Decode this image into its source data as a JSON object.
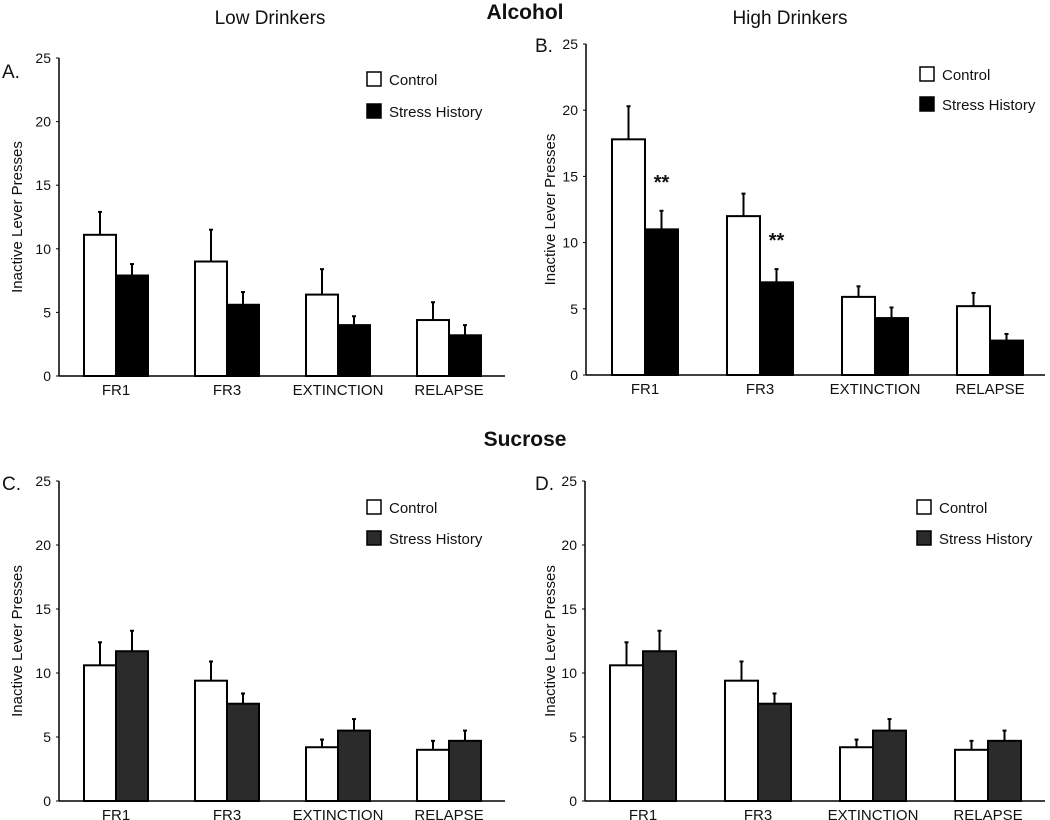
{
  "headers": {
    "low": "Low Drinkers",
    "alcohol": "Alcohol",
    "high": "High Drinkers",
    "sucrose": "Sucrose"
  },
  "colors": {
    "control": "#ffffff",
    "stress_alcohol": "#000000",
    "stress_sucrose": "#2b2b2b",
    "outline": "#000000"
  },
  "chart_data": [
    {
      "type": "bar",
      "panel": "A.",
      "title": "Low Drinkers",
      "group": "Alcohol",
      "ylabel": "Inactive Lever Presses",
      "ylim": [
        0,
        25
      ],
      "yticks": [
        "0",
        "5",
        "10",
        "15",
        "20",
        "25"
      ],
      "categories": [
        "FR1",
        "FR3",
        "EXTINCTION",
        "RELAPSE"
      ],
      "legend": [
        "Control",
        "Stress History"
      ],
      "legend_position": "top-right",
      "series": [
        {
          "name": "Control",
          "values": [
            11.1,
            9.0,
            6.4,
            4.4
          ],
          "errors": [
            1.8,
            2.5,
            2.0,
            1.4
          ]
        },
        {
          "name": "Stress History",
          "values": [
            7.9,
            5.6,
            4.0,
            3.2
          ],
          "errors": [
            0.9,
            1.0,
            0.7,
            0.8
          ]
        }
      ],
      "annotations": [
        "",
        "",
        "",
        ""
      ]
    },
    {
      "type": "bar",
      "panel": "B.",
      "title": "High Drinkers",
      "group": "Alcohol",
      "ylabel": "Inactive Lever Presses",
      "ylim": [
        0,
        25
      ],
      "yticks": [
        "0",
        "5",
        "10",
        "15",
        "20",
        "25"
      ],
      "categories": [
        "FR1",
        "FR3",
        "EXTINCTION",
        "RELAPSE"
      ],
      "legend": [
        "Control",
        "Stress History"
      ],
      "legend_position": "top-right",
      "series": [
        {
          "name": "Control",
          "values": [
            17.8,
            12.0,
            5.9,
            5.2
          ],
          "errors": [
            2.5,
            1.7,
            0.8,
            1.0
          ]
        },
        {
          "name": "Stress History",
          "values": [
            11.0,
            7.0,
            4.3,
            2.6
          ],
          "errors": [
            1.4,
            1.0,
            0.8,
            0.5
          ]
        }
      ],
      "annotations": [
        "**",
        "**",
        "",
        ""
      ]
    },
    {
      "type": "bar",
      "panel": "C.",
      "title": "Low Drinkers",
      "group": "Sucrose",
      "ylabel": "Inactive Lever Presses",
      "ylim": [
        0,
        25
      ],
      "yticks": [
        "0",
        "5",
        "10",
        "15",
        "20",
        "25"
      ],
      "categories": [
        "FR1",
        "FR3",
        "EXTINCTION",
        "RELAPSE"
      ],
      "legend": [
        "Control",
        "Stress History"
      ],
      "legend_position": "top-right",
      "series": [
        {
          "name": "Control",
          "values": [
            10.6,
            9.4,
            4.2,
            4.0
          ],
          "errors": [
            1.8,
            1.5,
            0.6,
            0.7
          ]
        },
        {
          "name": "Stress History",
          "values": [
            11.7,
            7.6,
            5.5,
            4.7
          ],
          "errors": [
            1.6,
            0.8,
            0.9,
            0.8
          ]
        }
      ],
      "annotations": [
        "",
        "",
        "",
        ""
      ]
    },
    {
      "type": "bar",
      "panel": "D.",
      "title": "High Drinkers",
      "group": "Sucrose",
      "ylabel": "Inactive Lever Presses",
      "ylim": [
        0,
        25
      ],
      "yticks": [
        "0",
        "5",
        "10",
        "15",
        "20",
        "25"
      ],
      "categories": [
        "FR1",
        "FR3",
        "EXTINCTION",
        "RELAPSE"
      ],
      "legend": [
        "Control",
        "Stress History"
      ],
      "legend_position": "top-right",
      "series": [
        {
          "name": "Control",
          "values": [
            10.6,
            9.4,
            4.2,
            4.0
          ],
          "errors": [
            1.8,
            1.5,
            0.6,
            0.7
          ]
        },
        {
          "name": "Stress History",
          "values": [
            11.7,
            7.6,
            5.5,
            4.7
          ],
          "errors": [
            1.6,
            0.8,
            0.9,
            0.8
          ]
        }
      ],
      "annotations": [
        "",
        "",
        "",
        ""
      ]
    }
  ]
}
